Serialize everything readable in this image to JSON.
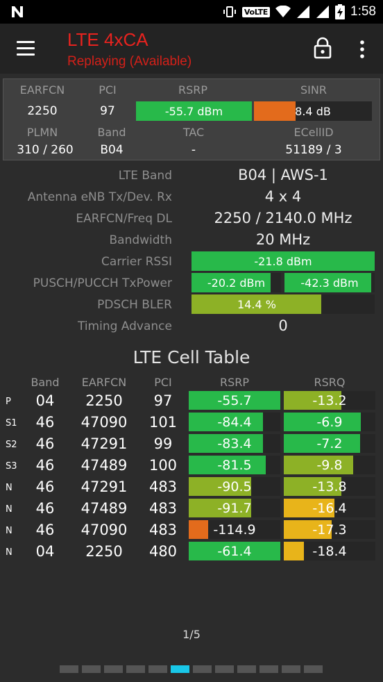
{
  "status_bar": {
    "notification_icon": "n-icon",
    "volte": "VoLTE",
    "time": "1:58"
  },
  "app_bar": {
    "title": "LTE 4xCA",
    "subtitle": "Replaying (Available)"
  },
  "summary": {
    "labels": {
      "earfcn": "EARFCN",
      "pci": "PCI",
      "rsrp": "RSRP",
      "sinr": "SINR",
      "plmn": "PLMN",
      "band": "Band",
      "tac": "TAC",
      "ecellid": "ECellID"
    },
    "values": {
      "earfcn": "2250",
      "pci": "97",
      "rsrp": "-55.7 dBm",
      "sinr": "8.4 dB",
      "plmn": "310 / 260",
      "band": "B04",
      "tac": "-",
      "ecellid": "51189 / 3"
    },
    "rsrp_fill": 1.0,
    "sinr_fill": 0.35
  },
  "info": {
    "lte_band_label": "LTE Band",
    "lte_band": "B04 | AWS-1",
    "antenna_label": "Antenna eNB Tx/Dev. Rx",
    "antenna": "4 x 4",
    "earfcn_label": "EARFCN/Freq DL",
    "earfcn": "2250 / 2140.0 MHz",
    "bandwidth_label": "Bandwidth",
    "bandwidth": "20 MHz",
    "rssi_label": "Carrier RSSI",
    "rssi": "-21.8 dBm",
    "rssi_fill": 1.0,
    "txpower_label": "PUSCH/PUCCH TxPower",
    "pusch": "-20.2 dBm",
    "pusch_fill": 0.88,
    "pucch": "-42.3 dBm",
    "pucch_fill": 0.96,
    "bler_label": "PDSCH BLER",
    "bler": "14.4 %",
    "bler_fill": 0.71,
    "ta_label": "Timing Advance",
    "ta": "0"
  },
  "cell_table": {
    "title": "LTE Cell Table",
    "headers": {
      "band": "Band",
      "earfcn": "EARFCN",
      "pci": "PCI",
      "rsrp": "RSRP",
      "rsrq": "RSRQ"
    },
    "rows": [
      {
        "type": "P",
        "band": "04",
        "earfcn": "2250",
        "pci": "97",
        "rsrp": "-55.7",
        "rsrp_fill": 1.0,
        "rsrp_color": "#28b94a",
        "rsrq": "-13.2",
        "rsrq_fill": 0.63,
        "rsrq_color": "#8db126"
      },
      {
        "type": "S1",
        "band": "46",
        "earfcn": "47090",
        "pci": "101",
        "rsrp": "-84.4",
        "rsrp_fill": 0.81,
        "rsrp_color": "#28b94a",
        "rsrq": "-6.9",
        "rsrq_fill": 0.84,
        "rsrq_color": "#28b94a"
      },
      {
        "type": "S2",
        "band": "46",
        "earfcn": "47291",
        "pci": "99",
        "rsrp": "-83.4",
        "rsrp_fill": 0.81,
        "rsrp_color": "#28b94a",
        "rsrq": "-7.2",
        "rsrq_fill": 0.83,
        "rsrq_color": "#28b94a"
      },
      {
        "type": "S3",
        "band": "46",
        "earfcn": "47489",
        "pci": "100",
        "rsrp": "-81.5",
        "rsrp_fill": 0.84,
        "rsrp_color": "#28b94a",
        "rsrq": "-9.8",
        "rsrq_fill": 0.76,
        "rsrq_color": "#8db126"
      },
      {
        "type": "N",
        "band": "46",
        "earfcn": "47291",
        "pci": "483",
        "rsrp": "-90.5",
        "rsrp_fill": 0.68,
        "rsrp_color": "#8db126",
        "rsrq": "-13.8",
        "rsrq_fill": 0.63,
        "rsrq_color": "#8db126"
      },
      {
        "type": "N",
        "band": "46",
        "earfcn": "47489",
        "pci": "483",
        "rsrp": "-91.7",
        "rsrp_fill": 0.68,
        "rsrp_color": "#8db126",
        "rsrq": "-16.4",
        "rsrq_fill": 0.55,
        "rsrq_color": "#e8b41a"
      },
      {
        "type": "N",
        "band": "46",
        "earfcn": "47090",
        "pci": "483",
        "rsrp": "-114.9",
        "rsrp_fill": 0.21,
        "rsrp_color": "#e36b1c",
        "rsrq": "-17.3",
        "rsrq_fill": 0.52,
        "rsrq_color": "#e8b41a"
      },
      {
        "type": "N",
        "band": "04",
        "earfcn": "2250",
        "pci": "480",
        "rsrp": "-61.4",
        "rsrp_fill": 1.0,
        "rsrp_color": "#28b94a",
        "rsrq": "-18.4",
        "rsrq_fill": 0.22,
        "rsrq_color": "#e8b41a"
      }
    ]
  },
  "pager": {
    "indicator": "1/5",
    "page_count": 12,
    "active_index": 5
  },
  "colors": {
    "good": "#28b94a",
    "fair": "#8db126",
    "warn": "#e8b41a",
    "bad": "#e36b1c",
    "title_red": "#e8231f",
    "accent": "#19c7e8"
  }
}
